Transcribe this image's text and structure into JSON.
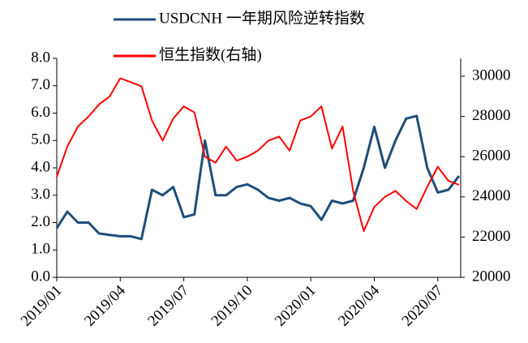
{
  "chart_data": {
    "type": "line",
    "categories": [
      "2019/01",
      null,
      null,
      null,
      null,
      null,
      "2019/04",
      null,
      null,
      null,
      null,
      null,
      "2019/07",
      null,
      null,
      null,
      null,
      null,
      "2019/10",
      null,
      null,
      null,
      null,
      null,
      "2020/01",
      null,
      null,
      null,
      null,
      null,
      "2020/04",
      null,
      null,
      null,
      null,
      null,
      "2020/07",
      null,
      null
    ],
    "series": [
      {
        "name": "USDCNH 一年期风险逆转指数",
        "color": "#1f4e79",
        "values": [
          1.8,
          2.4,
          2.0,
          2.0,
          1.6,
          1.55,
          1.5,
          1.5,
          1.4,
          3.2,
          3.0,
          3.3,
          2.2,
          2.3,
          5.0,
          3.0,
          3.0,
          3.3,
          3.4,
          3.2,
          2.9,
          2.8,
          2.9,
          2.7,
          2.6,
          2.1,
          2.8,
          2.7,
          2.8,
          4.0,
          5.5,
          4.0,
          5.0,
          5.8,
          5.9,
          4.0,
          3.1,
          3.2,
          3.7
        ]
      },
      {
        "name": "恒生指数(右轴)",
        "color": "#ff0000",
        "axis": "y2",
        "values": [
          25000,
          26500,
          27500,
          28000,
          28600,
          29000,
          29900,
          29700,
          29500,
          27800,
          26800,
          27900,
          28500,
          28200,
          26000,
          25700,
          26500,
          25800,
          26000,
          26300,
          26800,
          27000,
          26300,
          27800,
          28000,
          28500,
          26400,
          27500,
          24300,
          22300,
          23500,
          24000,
          24300,
          23800,
          23400,
          24500,
          25500,
          24800,
          24600
        ]
      }
    ],
    "ylim": [
      0,
      8
    ],
    "yticks": [
      {
        "value": 0,
        "label": "0.0"
      },
      {
        "value": 1,
        "label": "1.0"
      },
      {
        "value": 2,
        "label": "2.0"
      },
      {
        "value": 3,
        "label": "3.0"
      },
      {
        "value": 4,
        "label": "4.0"
      },
      {
        "value": 5,
        "label": "5.0"
      },
      {
        "value": 6,
        "label": "6.0"
      },
      {
        "value": 7,
        "label": "7.0"
      },
      {
        "value": 8,
        "label": "8.0"
      }
    ],
    "y2lim": [
      20000,
      30000
    ],
    "y2ticks": [
      20000,
      22000,
      24000,
      26000,
      28000,
      30000
    ]
  }
}
